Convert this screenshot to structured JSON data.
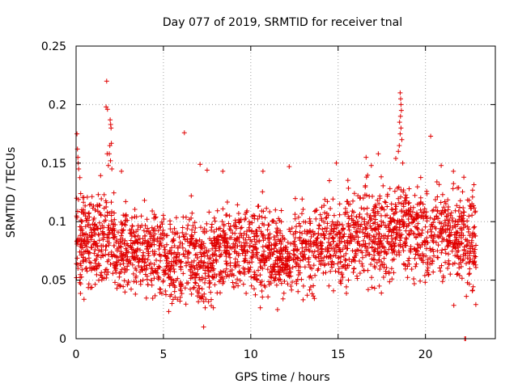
{
  "chart_data": {
    "type": "scatter",
    "title": "Day 077 of 2019, SRMTID for receiver tnal",
    "xlabel": "GPS time / hours",
    "ylabel": "SRMTID / TECUs",
    "xlim": [
      0,
      24
    ],
    "ylim": [
      0,
      0.25
    ],
    "xticks": [
      0,
      5,
      10,
      15,
      20
    ],
    "xtick_labels": [
      "0",
      "5",
      "10",
      "15",
      "20"
    ],
    "yticks": [
      0,
      0.05,
      0.1,
      0.15,
      0.2,
      0.25
    ],
    "ytick_labels": [
      "0",
      "0.05",
      "0.1",
      "0.15",
      "0.2",
      "0.25"
    ],
    "grid": true,
    "marker": "+",
    "color": "#e00000",
    "series": [
      {
        "name": "SRMTID",
        "profile_x": [
          0,
          0.3,
          1,
          1.7,
          2.5,
          3.5,
          4.5,
          5.5,
          6.5,
          7.5,
          8.5,
          9.5,
          10.5,
          11.5,
          12,
          12.5,
          13.5,
          14.5,
          15.5,
          16.5,
          17.5,
          18.5,
          19.5,
          20.5,
          21.5,
          22.5,
          22.9
        ],
        "profile_y": [
          0.09,
          0.088,
          0.083,
          0.089,
          0.08,
          0.075,
          0.073,
          0.067,
          0.07,
          0.065,
          0.077,
          0.077,
          0.075,
          0.07,
          0.062,
          0.077,
          0.077,
          0.082,
          0.085,
          0.087,
          0.087,
          0.092,
          0.09,
          0.092,
          0.086,
          0.082,
          0.08
        ],
        "profile_spread": [
          0.025,
          0.02,
          0.018,
          0.02,
          0.018,
          0.017,
          0.017,
          0.017,
          0.018,
          0.017,
          0.018,
          0.018,
          0.018,
          0.017,
          0.016,
          0.018,
          0.018,
          0.018,
          0.02,
          0.02,
          0.02,
          0.02,
          0.02,
          0.02,
          0.02,
          0.02,
          0.02
        ],
        "outliers": [
          {
            "x": 0.05,
            "y": 0.175
          },
          {
            "x": 0.08,
            "y": 0.162
          },
          {
            "x": 0.1,
            "y": 0.155
          },
          {
            "x": 0.12,
            "y": 0.15
          },
          {
            "x": 0.15,
            "y": 0.145
          },
          {
            "x": 1.75,
            "y": 0.22
          },
          {
            "x": 1.72,
            "y": 0.198
          },
          {
            "x": 1.8,
            "y": 0.196
          },
          {
            "x": 1.78,
            "y": 0.158
          },
          {
            "x": 1.95,
            "y": 0.187
          },
          {
            "x": 1.98,
            "y": 0.183
          },
          {
            "x": 2.0,
            "y": 0.18
          },
          {
            "x": 2.02,
            "y": 0.167
          },
          {
            "x": 1.93,
            "y": 0.165
          },
          {
            "x": 1.9,
            "y": 0.158
          },
          {
            "x": 1.97,
            "y": 0.152
          },
          {
            "x": 1.85,
            "y": 0.148
          },
          {
            "x": 2.05,
            "y": 0.145
          },
          {
            "x": 2.6,
            "y": 0.143
          },
          {
            "x": 6.2,
            "y": 0.176
          },
          {
            "x": 7.1,
            "y": 0.149
          },
          {
            "x": 7.5,
            "y": 0.144
          },
          {
            "x": 7.3,
            "y": 0.01
          },
          {
            "x": 8.4,
            "y": 0.143
          },
          {
            "x": 10.7,
            "y": 0.143
          },
          {
            "x": 12.2,
            "y": 0.147
          },
          {
            "x": 14.9,
            "y": 0.15
          },
          {
            "x": 14.5,
            "y": 0.135
          },
          {
            "x": 16.6,
            "y": 0.155
          },
          {
            "x": 16.9,
            "y": 0.148
          },
          {
            "x": 17.3,
            "y": 0.158
          },
          {
            "x": 18.3,
            "y": 0.154
          },
          {
            "x": 18.55,
            "y": 0.21
          },
          {
            "x": 18.58,
            "y": 0.205
          },
          {
            "x": 18.6,
            "y": 0.2
          },
          {
            "x": 18.62,
            "y": 0.195
          },
          {
            "x": 18.57,
            "y": 0.19
          },
          {
            "x": 18.52,
            "y": 0.185
          },
          {
            "x": 18.6,
            "y": 0.18
          },
          {
            "x": 18.55,
            "y": 0.175
          },
          {
            "x": 18.65,
            "y": 0.17
          },
          {
            "x": 18.5,
            "y": 0.165
          },
          {
            "x": 18.45,
            "y": 0.16
          },
          {
            "x": 18.7,
            "y": 0.15
          },
          {
            "x": 20.3,
            "y": 0.173
          },
          {
            "x": 20.9,
            "y": 0.148
          },
          {
            "x": 21.6,
            "y": 0.143
          },
          {
            "x": 22.2,
            "y": 0.138
          },
          {
            "x": 22.25,
            "y": 0.0
          },
          {
            "x": 22.3,
            "y": 0.0
          }
        ]
      }
    ]
  }
}
